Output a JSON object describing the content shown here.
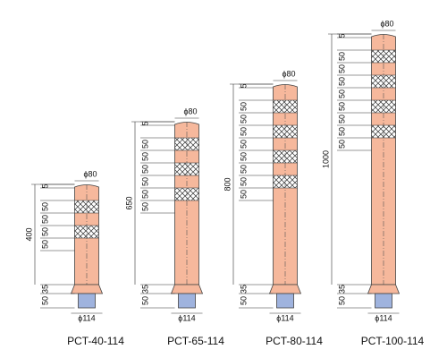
{
  "posts": [
    {
      "model": "PCT-40-114",
      "top_diameter": "ϕ80",
      "base_diameter": "ϕ114",
      "height": "400",
      "top_offset": "5",
      "bands": [
        "50",
        "50",
        "50",
        "50"
      ],
      "base": [
        "35",
        "50"
      ]
    },
    {
      "model": "PCT-65-114",
      "top_diameter": "ϕ80",
      "base_diameter": "ϕ114",
      "height": "650",
      "top_offset": "5",
      "bands": [
        "50",
        "50",
        "50",
        "50",
        "50",
        "50"
      ],
      "base": [
        "35",
        "50"
      ]
    },
    {
      "model": "PCT-80-114",
      "top_diameter": "ϕ80",
      "base_diameter": "ϕ114",
      "height": "800",
      "top_offset": "5",
      "bands": [
        "50",
        "50",
        "50",
        "50",
        "50",
        "50",
        "50",
        "50"
      ],
      "base": [
        "35",
        "50"
      ]
    },
    {
      "model": "PCT-100-114",
      "top_diameter": "ϕ80",
      "base_diameter": "ϕ114",
      "height": "1000",
      "top_offset": "5",
      "bands": [
        "50",
        "50",
        "50",
        "50",
        "50",
        "50",
        "50",
        "50"
      ],
      "base": [
        "35",
        "50"
      ]
    }
  ]
}
